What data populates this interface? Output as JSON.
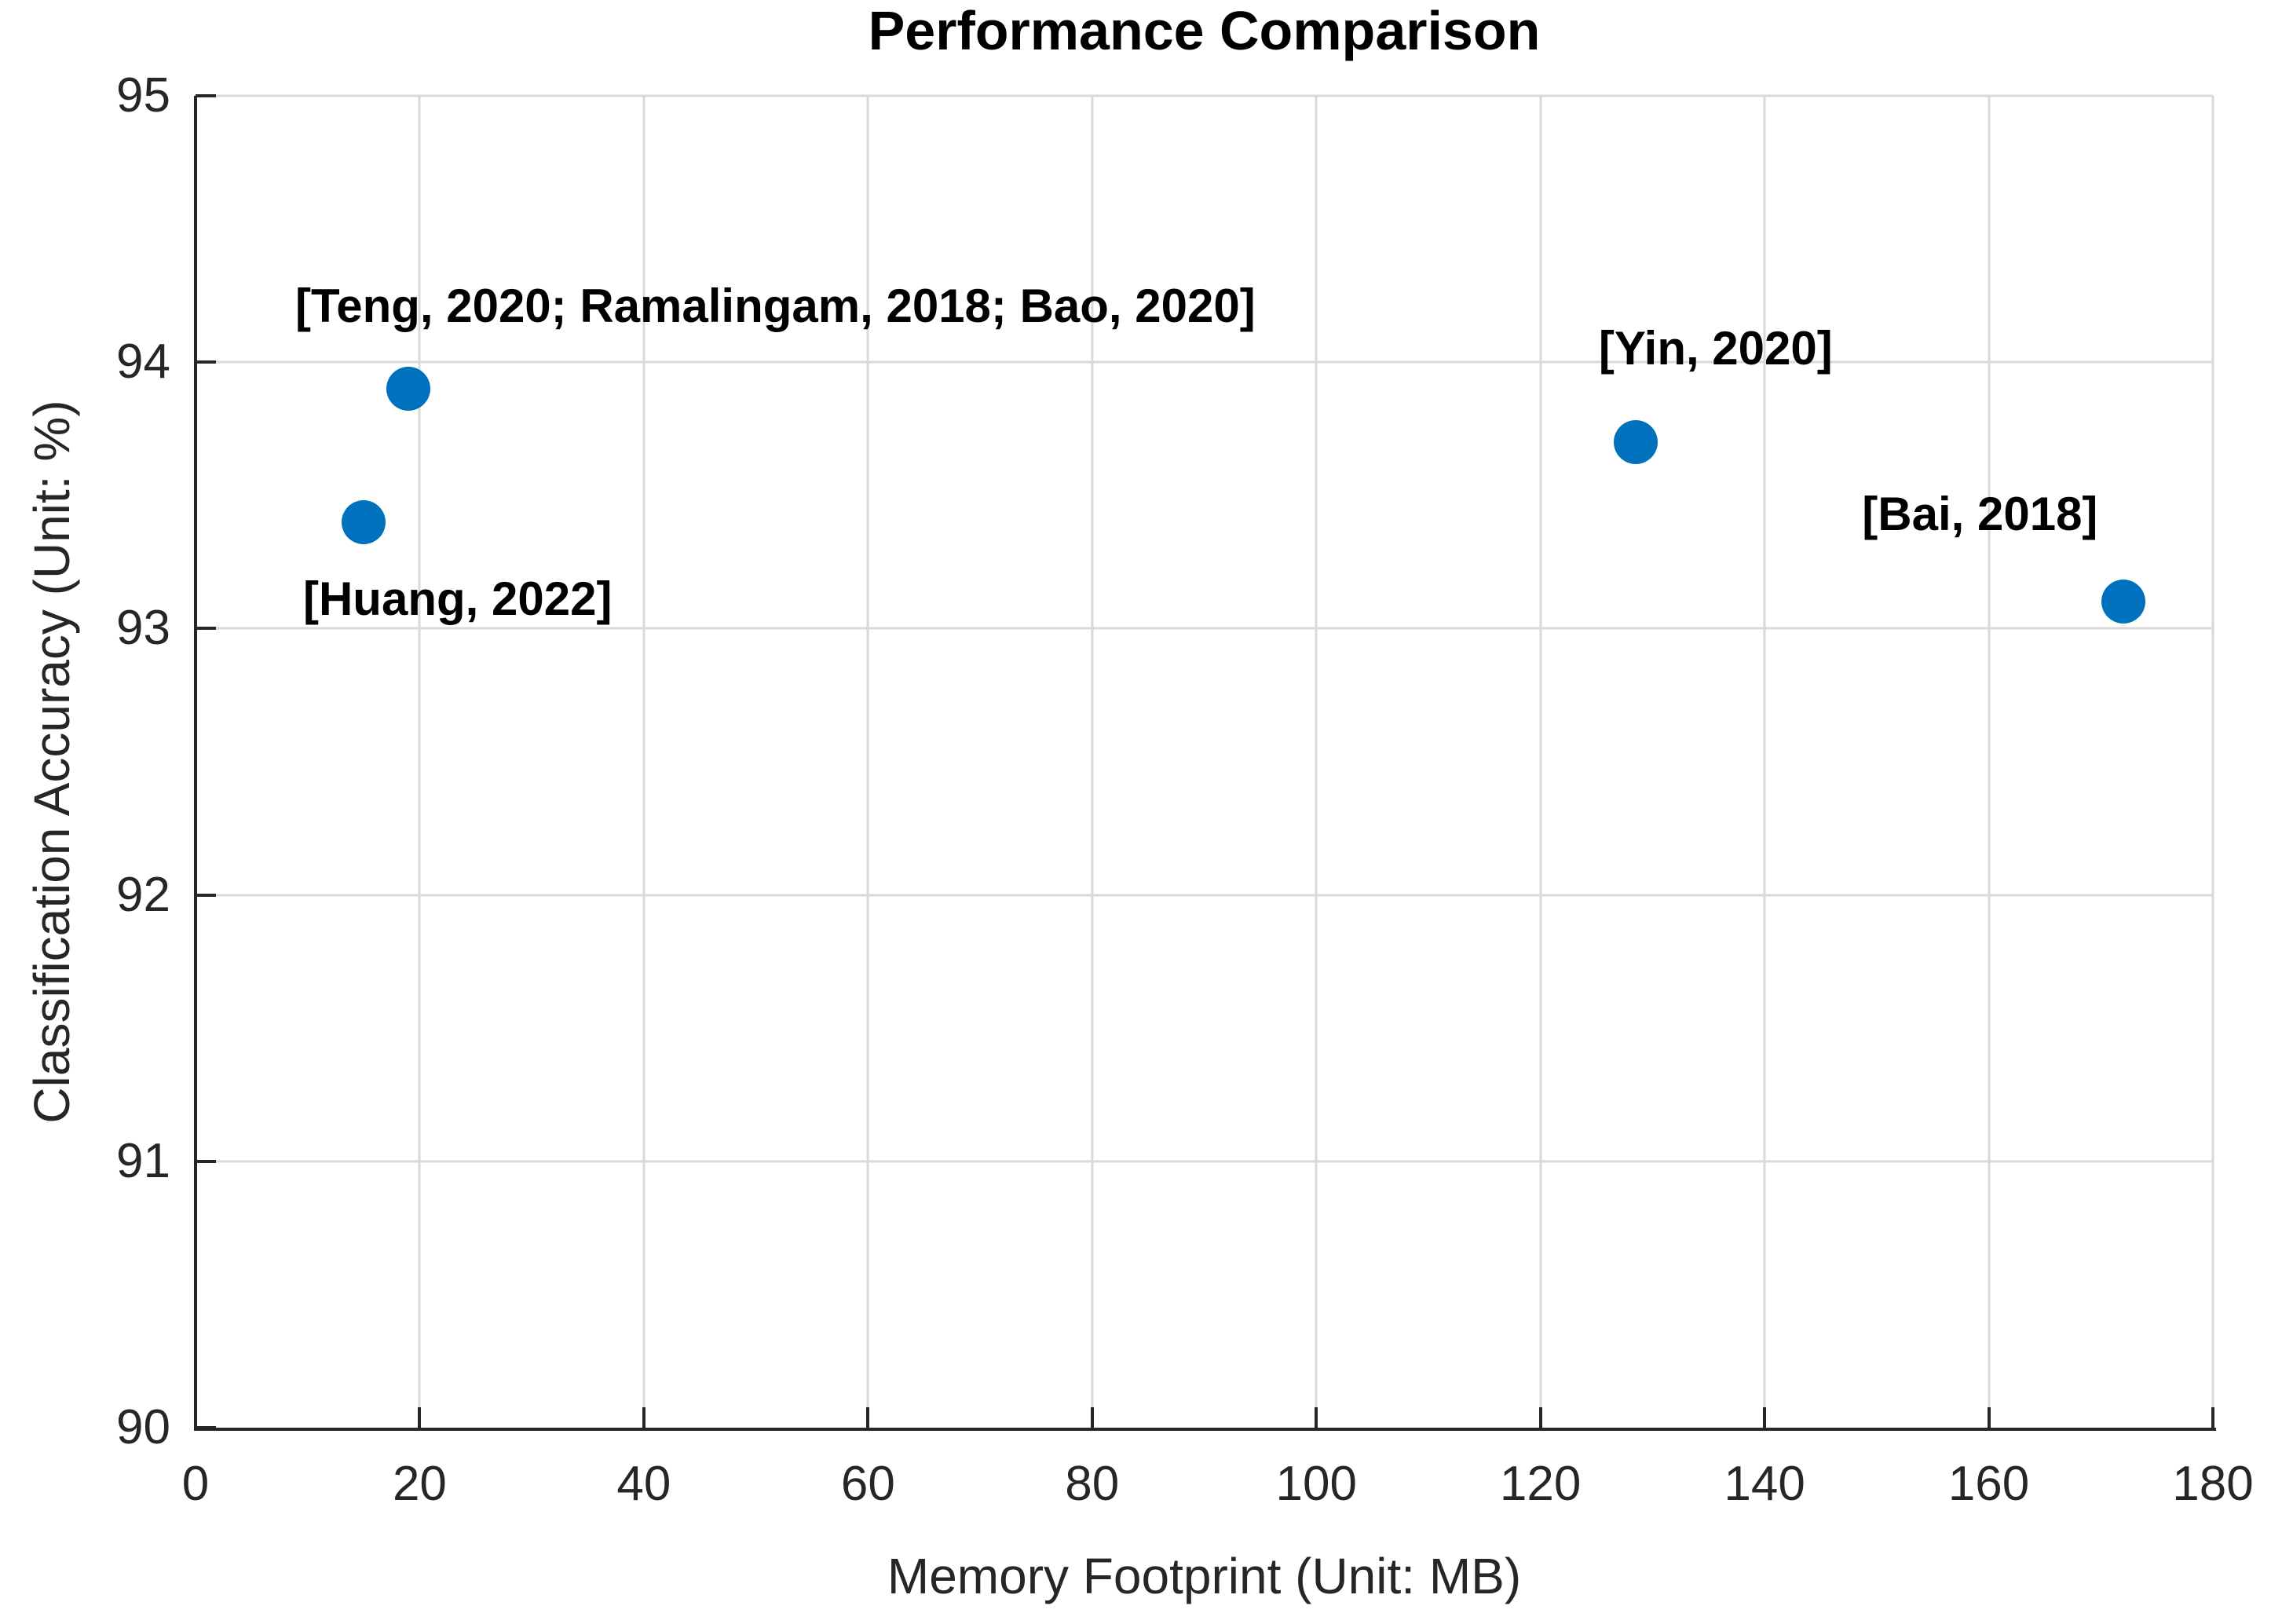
{
  "figure": {
    "background": "#ffffff"
  },
  "chart_data": {
    "type": "scatter",
    "title": "Performance Comparison",
    "xlabel": "Memory Footprint (Unit: MB)",
    "ylabel": "Classification Accuracy (Unit: %)",
    "xlim": [
      0,
      180
    ],
    "ylim": [
      90,
      95
    ],
    "x_ticks": [
      0,
      20,
      40,
      60,
      80,
      100,
      120,
      140,
      160,
      180
    ],
    "y_ticks": [
      90,
      91,
      92,
      93,
      94,
      95
    ],
    "grid": true,
    "legend": "none",
    "marker_color": "#0072BD",
    "grid_color": "#d9d9d9",
    "axis_color": "#262626",
    "points": [
      {
        "label": "[Teng, 2020; Ramalingam, 2018; Bao, 2020]",
        "x": 19,
        "y": 93.9,
        "label_x": 8.9,
        "label_y": 94.21
      },
      {
        "label": "[Huang, 2022]",
        "x": 15,
        "y": 93.4,
        "label_x": 9.6,
        "label_y": 93.11
      },
      {
        "label": "[Yin, 2020]",
        "x": 128.5,
        "y": 93.7,
        "label_x": 125.2,
        "label_y": 94.05
      },
      {
        "label": "[Bai, 2018]",
        "x": 172,
        "y": 93.1,
        "label_x": 148.7,
        "label_y": 93.43
      }
    ]
  }
}
